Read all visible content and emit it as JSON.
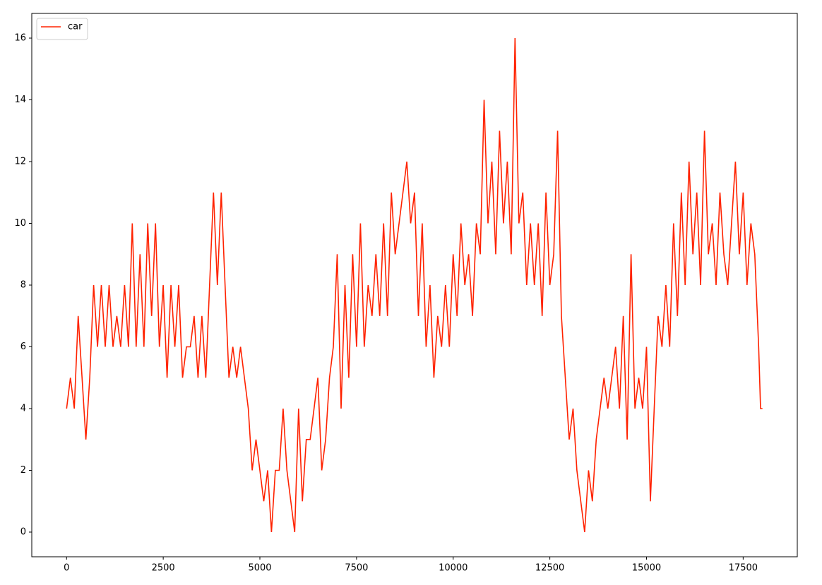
{
  "chart_data": {
    "type": "line",
    "x": [
      0,
      100,
      200,
      300,
      400,
      500,
      600,
      700,
      800,
      900,
      1000,
      1100,
      1200,
      1300,
      1400,
      1500,
      1600,
      1700,
      1800,
      1900,
      2000,
      2100,
      2200,
      2300,
      2400,
      2500,
      2600,
      2700,
      2800,
      2900,
      3000,
      3100,
      3200,
      3300,
      3400,
      3500,
      3600,
      3700,
      3800,
      3900,
      4000,
      4100,
      4200,
      4300,
      4400,
      4500,
      4600,
      4700,
      4800,
      4900,
      5000,
      5100,
      5200,
      5300,
      5400,
      5500,
      5600,
      5700,
      5800,
      5900,
      6000,
      6100,
      6200,
      6300,
      6400,
      6500,
      6600,
      6700,
      6800,
      6900,
      7000,
      7100,
      7200,
      7300,
      7400,
      7500,
      7600,
      7700,
      7800,
      7900,
      8000,
      8100,
      8200,
      8300,
      8400,
      8500,
      8600,
      8700,
      8800,
      8900,
      9000,
      9100,
      9200,
      9300,
      9400,
      9500,
      9600,
      9700,
      9800,
      9900,
      10000,
      10100,
      10200,
      10300,
      10400,
      10500,
      10600,
      10700,
      10800,
      10900,
      11000,
      11100,
      11200,
      11300,
      11400,
      11500,
      11600,
      11700,
      11800,
      11900,
      12000,
      12100,
      12200,
      12300,
      12400,
      12500,
      12600,
      12700,
      12800,
      12900,
      13000,
      13100,
      13200,
      13300,
      13400,
      13500,
      13600,
      13700,
      13800,
      13900,
      14000,
      14100,
      14200,
      14300,
      14400,
      14500,
      14600,
      14700,
      14800,
      14900,
      15000,
      15100,
      15200,
      15300,
      15400,
      15500,
      15600,
      15700,
      15800,
      15900,
      16000,
      16100,
      16200,
      16300,
      16400,
      16500,
      16600,
      16700,
      16800,
      16900,
      17000,
      17100,
      17200,
      17300,
      17400,
      17500,
      17600,
      17700,
      17800,
      17900,
      17950,
      18000
    ],
    "series": [
      {
        "name": "car",
        "color": "#ff2200",
        "values": [
          4,
          5,
          4,
          7,
          5,
          3,
          5,
          8,
          6,
          8,
          6,
          8,
          6,
          7,
          6,
          8,
          6,
          10,
          6,
          9,
          6,
          10,
          7,
          10,
          6,
          8,
          5,
          8,
          6,
          8,
          5,
          6,
          6,
          7,
          5,
          7,
          5,
          8,
          11,
          8,
          11,
          8,
          5,
          6,
          5,
          6,
          5,
          4,
          2,
          3,
          2,
          1,
          2,
          0,
          2,
          2,
          4,
          2,
          1,
          0,
          4,
          1,
          3,
          3,
          4,
          5,
          2,
          3,
          5,
          6,
          9,
          4,
          8,
          5,
          9,
          6,
          10,
          6,
          8,
          7,
          9,
          7,
          10,
          7,
          11,
          9,
          10,
          11,
          12,
          10,
          11,
          7,
          10,
          6,
          8,
          5,
          7,
          6,
          8,
          6,
          9,
          7,
          10,
          8,
          9,
          7,
          10,
          9,
          14,
          10,
          12,
          9,
          13,
          10,
          12,
          9,
          16,
          10,
          11,
          8,
          10,
          8,
          10,
          7,
          11,
          8,
          9,
          13,
          7,
          5,
          3,
          4,
          2,
          1,
          0,
          2,
          1,
          3,
          4,
          5,
          4,
          5,
          6,
          4,
          7,
          3,
          9,
          4,
          5,
          4,
          6,
          1,
          4,
          7,
          6,
          8,
          6,
          10,
          7,
          11,
          8,
          12,
          9,
          11,
          8,
          13,
          9,
          10,
          8,
          11,
          9,
          8,
          10,
          12,
          9,
          11,
          8,
          10,
          9,
          6,
          4,
          4
        ]
      }
    ],
    "xlim": [
      -900,
      18900
    ],
    "ylim": [
      -0.8,
      16.8
    ],
    "xticks": [
      0,
      2500,
      5000,
      7500,
      10000,
      12500,
      15000,
      17500
    ],
    "yticks": [
      0,
      2,
      4,
      6,
      8,
      10,
      12,
      14,
      16
    ],
    "legend": "upper left"
  }
}
